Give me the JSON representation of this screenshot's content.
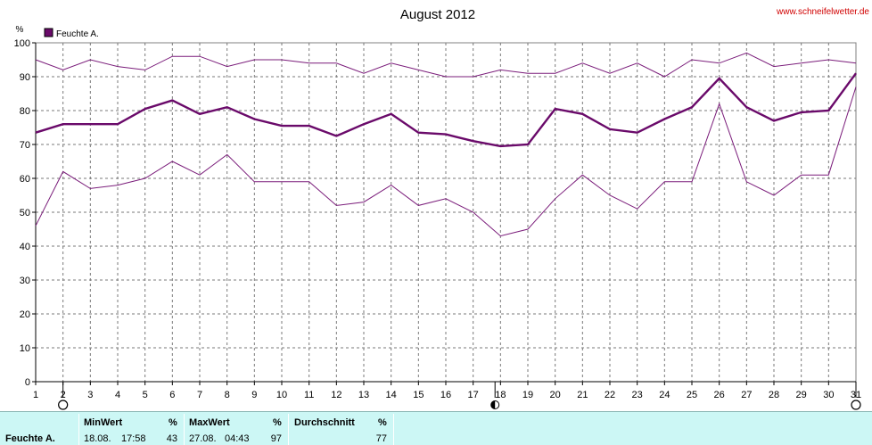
{
  "site": "www.schneifelwetter.de",
  "chart_data": {
    "type": "line",
    "title": "August 2012",
    "ylabel": "%",
    "xlabel": "",
    "x": [
      1,
      2,
      3,
      4,
      5,
      6,
      7,
      8,
      9,
      10,
      11,
      12,
      13,
      14,
      15,
      16,
      17,
      18,
      19,
      20,
      21,
      22,
      23,
      24,
      25,
      26,
      27,
      28,
      29,
      30,
      31
    ],
    "ylim": [
      0,
      100
    ],
    "yticks": [
      0,
      10,
      20,
      30,
      40,
      50,
      60,
      70,
      80,
      90,
      100
    ],
    "grid": true,
    "legend": "top-left",
    "legend_label": "Feuchte A.",
    "series": [
      {
        "role": "max",
        "color": "#7a1c7a",
        "values": [
          95,
          92,
          95,
          93,
          92,
          96,
          96,
          93,
          95,
          95,
          94,
          94,
          91,
          94,
          92,
          90,
          90,
          92,
          91,
          91,
          94,
          91,
          94,
          90,
          95,
          94,
          97,
          93,
          94,
          95,
          94
        ]
      },
      {
        "role": "avg",
        "name": "Feuchte A.",
        "color": "#6a0a6a",
        "values": [
          73.5,
          76,
          76,
          76,
          80.5,
          83,
          79,
          81,
          77.5,
          75.5,
          75.5,
          72.5,
          76,
          79,
          73.5,
          73,
          71,
          69.5,
          70,
          80.5,
          79,
          74.5,
          73.5,
          77.5,
          81,
          89.5,
          81,
          77,
          79.5,
          80,
          91
        ]
      },
      {
        "role": "min",
        "color": "#7a1c7a",
        "values": [
          46,
          62,
          57,
          58,
          60,
          65,
          61,
          67,
          59,
          59,
          59,
          52,
          53,
          58,
          52,
          54,
          50,
          43,
          45,
          54,
          61,
          55,
          51,
          59,
          59,
          82,
          59,
          55,
          61,
          61,
          87
        ]
      }
    ],
    "moon_phases": [
      {
        "day": 2,
        "phase": "full"
      },
      {
        "day": 17.8,
        "phase": "half"
      },
      {
        "day": 31,
        "phase": "full"
      }
    ]
  },
  "stats": {
    "row_label": "Feuchte A.",
    "min_header": "MinWert",
    "min_unit": "%",
    "min_date": "18.08.",
    "min_time": "17:58",
    "min_value": "43",
    "max_header": "MaxWert",
    "max_unit": "%",
    "max_date": "27.08.",
    "max_time": "04:43",
    "max_value": "97",
    "avg_header": "Durchschnitt",
    "avg_unit": "%",
    "avg_value": "77"
  }
}
